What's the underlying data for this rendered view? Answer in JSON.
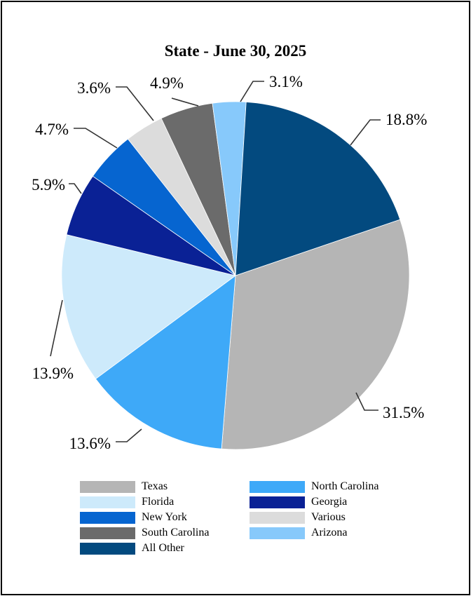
{
  "chart_data": {
    "type": "pie",
    "title": "State - June 30, 2025",
    "slices": [
      {
        "label": "Texas",
        "value": 31.5,
        "display": "31.5%",
        "color": "#b5b5b5"
      },
      {
        "label": "North Carolina",
        "value": 13.6,
        "display": "13.6%",
        "color": "#3ea9f8"
      },
      {
        "label": "Florida",
        "value": 13.9,
        "display": "13.9%",
        "color": "#cdeafb"
      },
      {
        "label": "Georgia",
        "value": 5.9,
        "display": "5.9%",
        "color": "#0a2195"
      },
      {
        "label": "New York",
        "value": 4.7,
        "display": "4.7%",
        "color": "#0665d0"
      },
      {
        "label": "Various",
        "value": 3.6,
        "display": "3.6%",
        "color": "#dcdcdc"
      },
      {
        "label": "South Carolina",
        "value": 4.9,
        "display": "4.9%",
        "color": "#6b6b6b"
      },
      {
        "label": "Arizona",
        "value": 3.1,
        "display": "3.1%",
        "color": "#87c9fb"
      },
      {
        "label": "All Other",
        "value": 18.8,
        "display": "18.8%",
        "color": "#034a7f"
      }
    ],
    "legend_position": "bottom",
    "legend_order": [
      "Texas",
      "North Carolina",
      "Florida",
      "Georgia",
      "New York",
      "Various",
      "South Carolina",
      "Arizona",
      "All Other"
    ]
  }
}
